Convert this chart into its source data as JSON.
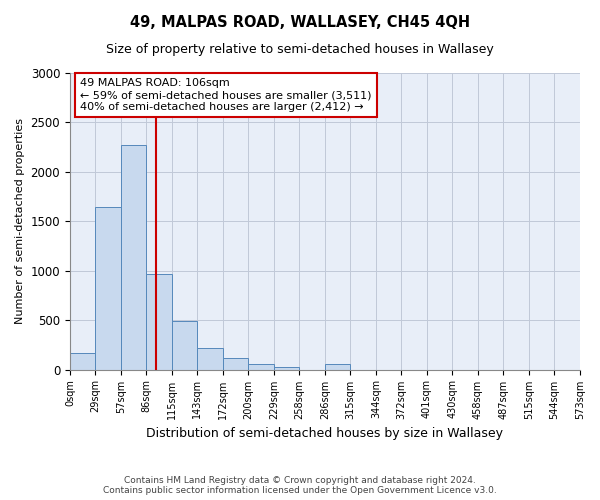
{
  "title": "49, MALPAS ROAD, WALLASEY, CH45 4QH",
  "subtitle": "Size of property relative to semi-detached houses in Wallasey",
  "xlabel": "Distribution of semi-detached houses by size in Wallasey",
  "ylabel": "Number of semi-detached properties",
  "bin_labels": [
    "0sqm",
    "29sqm",
    "57sqm",
    "86sqm",
    "115sqm",
    "143sqm",
    "172sqm",
    "200sqm",
    "229sqm",
    "258sqm",
    "286sqm",
    "315sqm",
    "344sqm",
    "372sqm",
    "401sqm",
    "430sqm",
    "458sqm",
    "487sqm",
    "515sqm",
    "544sqm",
    "573sqm"
  ],
  "bar_heights": [
    170,
    1640,
    2270,
    970,
    490,
    220,
    115,
    55,
    30,
    0,
    55,
    0,
    0,
    0,
    0,
    0,
    0,
    0,
    0,
    0
  ],
  "bar_color": "#c8d9ee",
  "bar_edge_color": "#5588bb",
  "vline_x": 3.36,
  "vline_color": "#cc0000",
  "annotation_text": "49 MALPAS ROAD: 106sqm\n← 59% of semi-detached houses are smaller (3,511)\n40% of semi-detached houses are larger (2,412) →",
  "annotation_box_color": "#ffffff",
  "annotation_box_edge": "#cc0000",
  "ylim": [
    0,
    3000
  ],
  "yticks": [
    0,
    500,
    1000,
    1500,
    2000,
    2500,
    3000
  ],
  "footer_line1": "Contains HM Land Registry data © Crown copyright and database right 2024.",
  "footer_line2": "Contains public sector information licensed under the Open Government Licence v3.0.",
  "bg_color": "#e8eef8",
  "grid_color": "#c0c8d8"
}
